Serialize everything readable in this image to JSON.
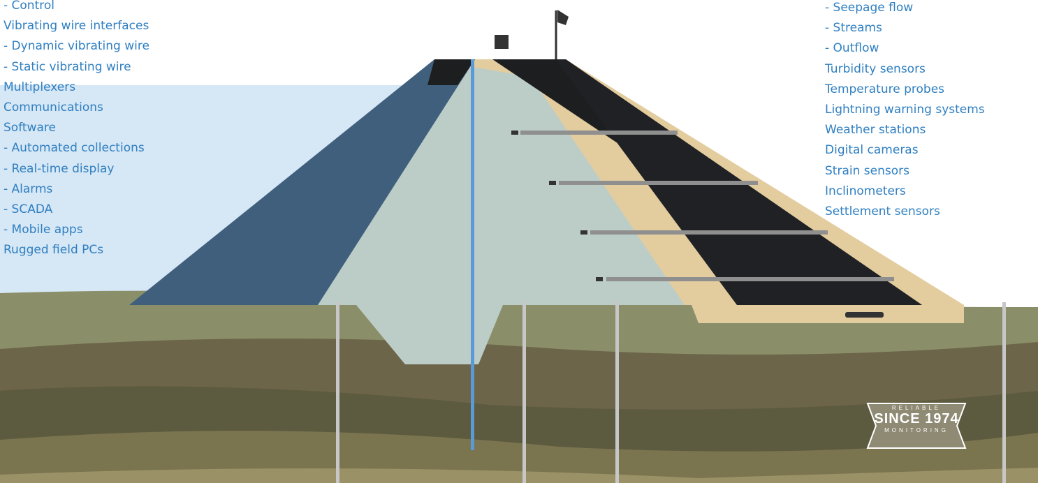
{
  "left_list": [
    "- Control",
    "Vibrating wire interfaces",
    "- Dynamic vibrating wire",
    "- Static vibrating wire",
    "Multiplexers",
    "Communications",
    "Software",
    "- Automated collections",
    "- Real-time display",
    "- Alarms",
    "- SCADA",
    "- Mobile apps",
    "Rugged field PCs"
  ],
  "right_list": [
    "- Seepage flow",
    "- Streams",
    "- Outflow",
    "Turbidity sensors",
    "Temperature probes",
    "Lightning warning systems",
    "Weather stations",
    "Digital cameras",
    "Strain sensors",
    "Inclinometers",
    "Settlement sensors"
  ],
  "badge": {
    "top": "RELIABLE",
    "main": "SINCE 1974",
    "bottom": "MONITORING"
  }
}
